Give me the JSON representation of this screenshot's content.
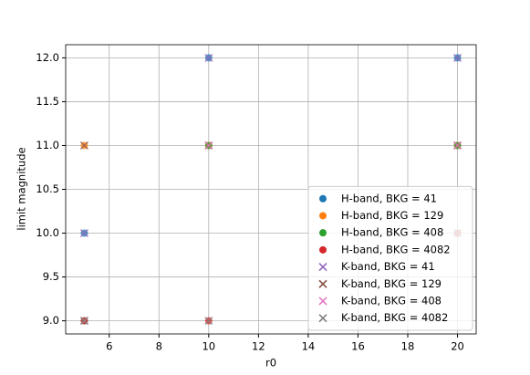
{
  "chart_data": {
    "type": "scatter",
    "x_label": "r0",
    "y_label": "limit magnitude",
    "x": [
      5,
      10,
      20
    ],
    "series": [
      {
        "name": "H-band, BKG = 41",
        "color": "#1f77b4",
        "marker": "o",
        "values": [
          10,
          12,
          12
        ]
      },
      {
        "name": "H-band, BKG = 129",
        "color": "#ff7f0e",
        "marker": "o",
        "values": [
          11,
          11,
          11
        ]
      },
      {
        "name": "H-band, BKG = 408",
        "color": "#2ca02c",
        "marker": "o",
        "values": [
          9,
          11,
          11
        ]
      },
      {
        "name": "H-band, BKG = 4082",
        "color": "#d62728",
        "marker": "o",
        "values": [
          9,
          9,
          10
        ]
      },
      {
        "name": "K-band, BKG = 41",
        "color": "#9467bd",
        "marker": "x",
        "values": [
          10,
          12,
          12
        ]
      },
      {
        "name": "K-band, BKG = 129",
        "color": "#8c564b",
        "marker": "x",
        "values": [
          11,
          11,
          11
        ]
      },
      {
        "name": "K-band, BKG = 408",
        "color": "#e377c2",
        "marker": "x",
        "values": [
          9,
          11,
          11
        ]
      },
      {
        "name": "K-band, BKG = 4082",
        "color": "#7f7f7f",
        "marker": "x",
        "values": [
          9,
          9,
          10
        ]
      }
    ],
    "xlim": [
      4.25,
      20.75
    ],
    "xticks": [
      6,
      8,
      10,
      12,
      14,
      16,
      18,
      20
    ],
    "ylim": [
      8.85,
      12.15
    ],
    "yticks": [
      {
        "value": 9,
        "label": "9.0"
      },
      9.5,
      {
        "value": 10,
        "label": "10.0"
      },
      10.5,
      {
        "value": 11,
        "label": "11.0"
      },
      11.5,
      {
        "value": 12,
        "label": "12.0"
      }
    ],
    "grid": true,
    "legend_position": "lower right"
  }
}
